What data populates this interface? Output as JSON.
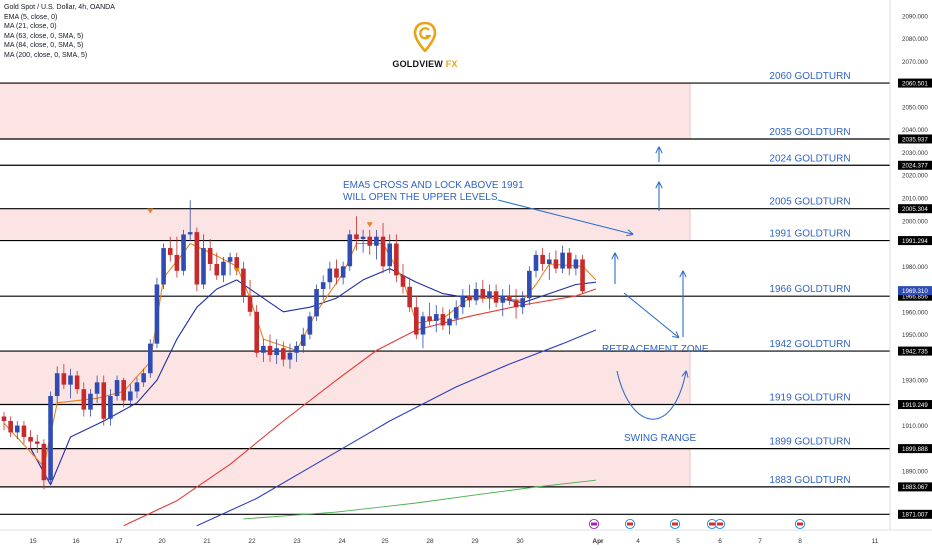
{
  "header": {
    "symbol": "Gold Spot / U.S. Dollar, 4h, OANDA",
    "indicators": [
      "EMA (5, close, 0)",
      "MA (21, close, 0)",
      "MA (63, close, 0, SMA, 5)",
      "MA (84, close, 0, SMA, 5)",
      "MA (200, close, 0, SMA, 5)"
    ]
  },
  "logo": {
    "name": "GOLDVIEW",
    "suffix": "FX"
  },
  "colors": {
    "up": "#2f4cb4",
    "down": "#c62a2a",
    "zone_fill": "#fde4e4",
    "line": "#000000",
    "label": "#2f64c8",
    "ema5": "#e8821e",
    "ma21": "#1f2fa8",
    "ma63": "#e53935",
    "ma84": "#2d3fc2",
    "ma200": "#4caf50",
    "arrow": "#2f6ec8",
    "logo_gold": "#e8a317"
  },
  "annotations": {
    "ema_note_line1": "EMA5 CROSS AND LOCK ABOVE 1991",
    "ema_note_line2": "WILL OPEN THE UPPER LEVELS",
    "retracement": "RETRACEMENT ZONE",
    "swing": "SWING RANGE"
  },
  "chart_data": {
    "type": "candlestick",
    "ylim": [
      1865,
      2097
    ],
    "y_ticks": [
      "2090.000",
      "2080.000",
      "2070.000",
      "2050.000",
      "2040.000",
      "2030.000",
      "2020.000",
      "2010.000",
      "2000.000",
      "1980.000",
      "1960.000",
      "1950.000",
      "1930.000",
      "1910.000",
      "1890.000"
    ],
    "x_ticks": [
      "15",
      "16",
      "17",
      "20",
      "21",
      "22",
      "23",
      "24",
      "25",
      "28",
      "29",
      "30",
      "Apr",
      "4",
      "5",
      "6",
      "7",
      "8",
      "11"
    ],
    "levels": [
      {
        "value": 2060.501,
        "label": "2060 GOLDTURN",
        "price_label": "2060.501"
      },
      {
        "value": 2035.937,
        "label": "2035 GOLDTURN",
        "price_label": "2035.937"
      },
      {
        "value": 2024.377,
        "label": "2024 GOLDTURN",
        "price_label": "2024.377"
      },
      {
        "value": 2005.304,
        "label": "2005 GOLDTURN",
        "price_label": "2005.304"
      },
      {
        "value": 1991.294,
        "label": "1991 GOLDTURN",
        "price_label": "1991.294"
      },
      {
        "value": 1966.856,
        "label": "1966 GOLDTURN",
        "price_label": "1966.856"
      },
      {
        "value": 1942.735,
        "label": "1942 GOLDTURN",
        "price_label": "1942.735"
      },
      {
        "value": 1919.249,
        "label": "1919 GOLDTURN",
        "price_label": "1919.249"
      },
      {
        "value": 1899.888,
        "label": "1899 GOLDTURN",
        "price_label": "1899.888"
      },
      {
        "value": 1883.067,
        "label": "1883 GOLDTURN",
        "price_label": "1883.067"
      },
      {
        "value": 1871.007,
        "label": "",
        "price_label": "1871.007"
      }
    ],
    "current_price": {
      "value": 1969.31,
      "label": "1969.310"
    },
    "zones": [
      [
        2035.937,
        2060.501
      ],
      [
        1991.294,
        2005.304
      ],
      [
        1919.249,
        1942.735
      ],
      [
        1883.067,
        1899.888
      ]
    ],
    "candles": [
      [
        1914,
        1916,
        1908,
        1912
      ],
      [
        1912,
        1914,
        1905,
        1907
      ],
      [
        1907,
        1912,
        1904,
        1910
      ],
      [
        1910,
        1912,
        1902,
        1905
      ],
      [
        1905,
        1908,
        1900,
        1903
      ],
      [
        1903,
        1906,
        1898,
        1902
      ],
      [
        1902,
        1904,
        1882,
        1886
      ],
      [
        1886,
        1925,
        1884,
        1923
      ],
      [
        1923,
        1936,
        1920,
        1933
      ],
      [
        1933,
        1937,
        1926,
        1928
      ],
      [
        1928,
        1935,
        1922,
        1932
      ],
      [
        1932,
        1934,
        1924,
        1926
      ],
      [
        1926,
        1929,
        1914,
        1917
      ],
      [
        1917,
        1926,
        1914,
        1924
      ],
      [
        1924,
        1932,
        1920,
        1929
      ],
      [
        1929,
        1932,
        1910,
        1913
      ],
      [
        1913,
        1926,
        1910,
        1923
      ],
      [
        1923,
        1932,
        1921,
        1930
      ],
      [
        1930,
        1931,
        1918,
        1921
      ],
      [
        1921,
        1928,
        1918,
        1925
      ],
      [
        1925,
        1931,
        1922,
        1929
      ],
      [
        1929,
        1935,
        1927,
        1933
      ],
      [
        1933,
        1948,
        1931,
        1946
      ],
      [
        1946,
        1975,
        1944,
        1972
      ],
      [
        1972,
        1990,
        1970,
        1988
      ],
      [
        1988,
        1993,
        1982,
        1985
      ],
      [
        1985,
        1993,
        1975,
        1978
      ],
      [
        1978,
        1996,
        1976,
        1994
      ],
      [
        1994,
        2009,
        1991,
        1995
      ],
      [
        1995,
        1997,
        1969,
        1972
      ],
      [
        1972,
        1994,
        1970,
        1988
      ],
      [
        1988,
        1992,
        1978,
        1981
      ],
      [
        1981,
        1986,
        1974,
        1976
      ],
      [
        1976,
        1984,
        1973,
        1982
      ],
      [
        1982,
        1986,
        1976,
        1984
      ],
      [
        1984,
        1986,
        1976,
        1979
      ],
      [
        1979,
        1982,
        1964,
        1967
      ],
      [
        1967,
        1974,
        1958,
        1960
      ],
      [
        1960,
        1963,
        1940,
        1942
      ],
      [
        1942,
        1948,
        1938,
        1945
      ],
      [
        1945,
        1950,
        1938,
        1941
      ],
      [
        1941,
        1948,
        1937,
        1944
      ],
      [
        1944,
        1947,
        1936,
        1939
      ],
      [
        1939,
        1946,
        1935,
        1942
      ],
      [
        1942,
        1947,
        1938,
        1945
      ],
      [
        1945,
        1953,
        1942,
        1950
      ],
      [
        1950,
        1960,
        1948,
        1958
      ],
      [
        1958,
        1972,
        1956,
        1970
      ],
      [
        1970,
        1976,
        1965,
        1973
      ],
      [
        1973,
        1982,
        1970,
        1979
      ],
      [
        1979,
        1983,
        1972,
        1975
      ],
      [
        1975,
        1982,
        1972,
        1980
      ],
      [
        1980,
        1996,
        1978,
        1994
      ],
      [
        1994,
        2002,
        1987,
        1992
      ],
      [
        1992,
        1996,
        1986,
        1993
      ],
      [
        1993,
        1996,
        1985,
        1989
      ],
      [
        1989,
        1996,
        1983,
        1993
      ],
      [
        1993,
        1999,
        1977,
        1980
      ],
      [
        1980,
        1994,
        1977,
        1990
      ],
      [
        1990,
        1994,
        1973,
        1976
      ],
      [
        1976,
        1981,
        1968,
        1971
      ],
      [
        1971,
        1975,
        1960,
        1962
      ],
      [
        1962,
        1967,
        1948,
        1950
      ],
      [
        1950,
        1960,
        1944,
        1958
      ],
      [
        1958,
        1964,
        1954,
        1956
      ],
      [
        1956,
        1963,
        1951,
        1959
      ],
      [
        1959,
        1962,
        1952,
        1954
      ],
      [
        1954,
        1961,
        1950,
        1957
      ],
      [
        1957,
        1965,
        1954,
        1962
      ],
      [
        1962,
        1970,
        1959,
        1967
      ],
      [
        1967,
        1972,
        1962,
        1965
      ],
      [
        1965,
        1973,
        1963,
        1970
      ],
      [
        1970,
        1974,
        1964,
        1966
      ],
      [
        1966,
        1972,
        1961,
        1969
      ],
      [
        1969,
        1972,
        1962,
        1964
      ],
      [
        1964,
        1970,
        1958,
        1967
      ],
      [
        1967,
        1972,
        1963,
        1965
      ],
      [
        1965,
        1970,
        1957,
        1962
      ],
      [
        1962,
        1969,
        1959,
        1966
      ],
      [
        1966,
        1980,
        1963,
        1978
      ],
      [
        1978,
        1987,
        1975,
        1985
      ],
      [
        1985,
        1988,
        1978,
        1981
      ],
      [
        1981,
        1986,
        1974,
        1983
      ],
      [
        1983,
        1987,
        1977,
        1979
      ],
      [
        1979,
        1989,
        1977,
        1986
      ],
      [
        1986,
        1988,
        1976,
        1979
      ],
      [
        1979,
        1985,
        1976,
        1983
      ],
      [
        1983,
        1985,
        1968,
        1969
      ]
    ],
    "ema5": [
      [
        0,
        1911
      ],
      [
        6,
        1892
      ],
      [
        8,
        1920
      ],
      [
        14,
        1922
      ],
      [
        18,
        1925
      ],
      [
        22,
        1938
      ],
      [
        24,
        1975
      ],
      [
        27,
        1986
      ],
      [
        28,
        1990
      ],
      [
        31,
        1986
      ],
      [
        35,
        1980
      ],
      [
        37,
        1966
      ],
      [
        39,
        1948
      ],
      [
        44,
        1943
      ],
      [
        47,
        1960
      ],
      [
        51,
        1977
      ],
      [
        53,
        1990
      ],
      [
        57,
        1990
      ],
      [
        60,
        1974
      ],
      [
        62,
        1955
      ],
      [
        66,
        1957
      ],
      [
        70,
        1966
      ],
      [
        74,
        1966
      ],
      [
        78,
        1965
      ],
      [
        80,
        1972
      ],
      [
        82,
        1981
      ],
      [
        87,
        1980
      ],
      [
        89,
        1974
      ]
    ],
    "ma21": [
      [
        4,
        1900
      ],
      [
        7,
        1884
      ],
      [
        10,
        1905
      ],
      [
        15,
        1912
      ],
      [
        20,
        1920
      ],
      [
        23,
        1930
      ],
      [
        26,
        1948
      ],
      [
        29,
        1962
      ],
      [
        32,
        1970
      ],
      [
        35,
        1974
      ],
      [
        38,
        1968
      ],
      [
        42,
        1960
      ],
      [
        46,
        1962
      ],
      [
        50,
        1966
      ],
      [
        54,
        1974
      ],
      [
        58,
        1979
      ],
      [
        62,
        1973
      ],
      [
        66,
        1968
      ],
      [
        70,
        1966
      ],
      [
        74,
        1966
      ],
      [
        78,
        1964
      ],
      [
        82,
        1968
      ],
      [
        86,
        1972
      ],
      [
        89,
        1973
      ]
    ],
    "ma63": [
      [
        18,
        1866
      ],
      [
        26,
        1877
      ],
      [
        34,
        1893
      ],
      [
        42,
        1912
      ],
      [
        50,
        1930
      ],
      [
        56,
        1943
      ],
      [
        62,
        1952
      ],
      [
        70,
        1958
      ],
      [
        78,
        1963
      ],
      [
        86,
        1967
      ],
      [
        89,
        1970
      ]
    ],
    "ma84": [
      [
        29,
        1866
      ],
      [
        38,
        1878
      ],
      [
        48,
        1895
      ],
      [
        58,
        1912
      ],
      [
        68,
        1927
      ],
      [
        76,
        1937
      ],
      [
        84,
        1946
      ],
      [
        89,
        1952
      ]
    ],
    "ma200": [
      [
        36,
        1869
      ],
      [
        50,
        1872
      ],
      [
        62,
        1876
      ],
      [
        72,
        1880
      ],
      [
        80,
        1883
      ],
      [
        89,
        1886
      ]
    ]
  }
}
